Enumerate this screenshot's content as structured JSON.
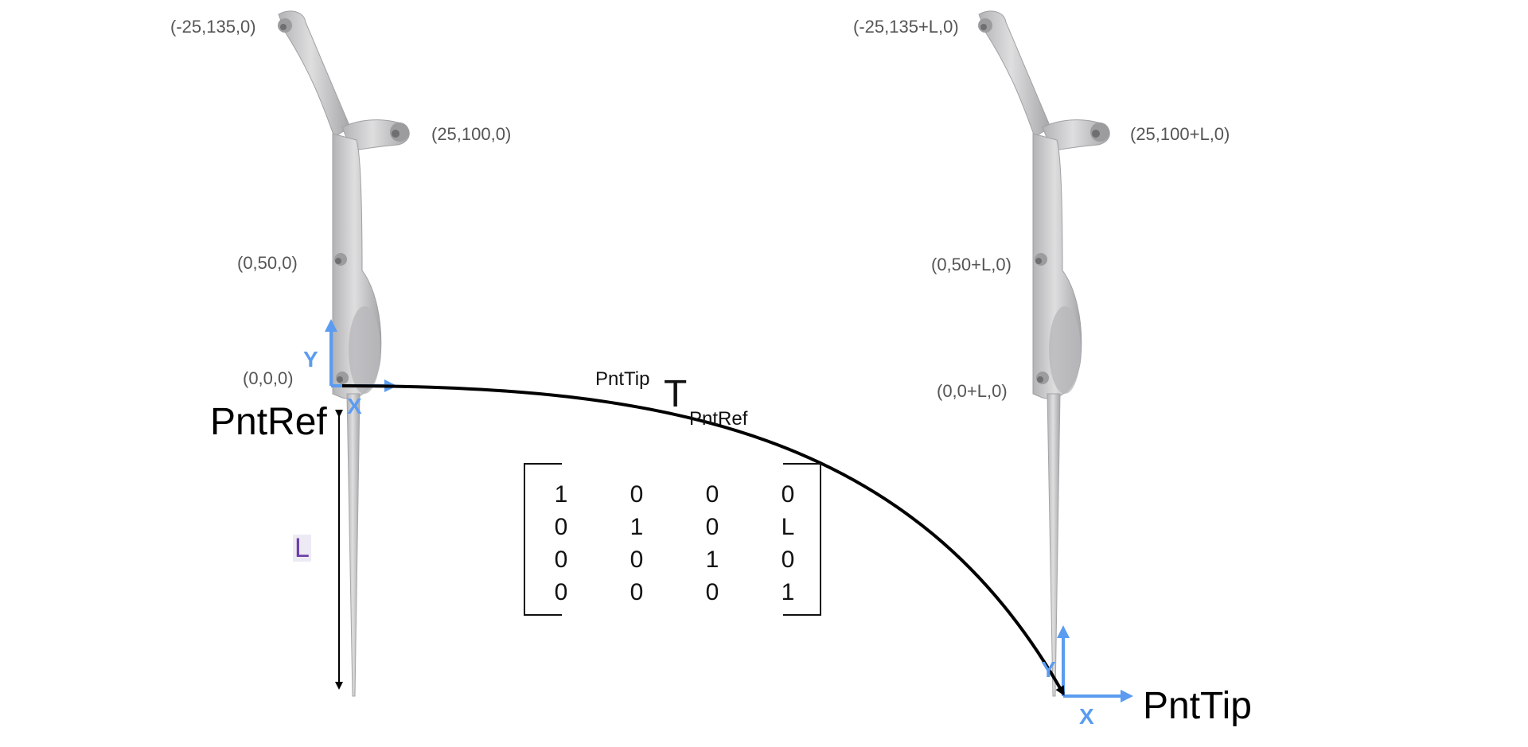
{
  "colors": {
    "axis": "#5b9cf0",
    "arrow": "#000000",
    "probe_fill": "#c9c9cb",
    "probe_shade": "#9d9da0",
    "L_label": "#6a3fa8"
  },
  "left_probe": {
    "markers": [
      {
        "label": "(-25,135,0)"
      },
      {
        "label": "(25,100,0)"
      },
      {
        "label": "(0,50,0)"
      },
      {
        "label": "(0,0,0)"
      }
    ],
    "frame_name": "PntRef",
    "axis_y": "Y",
    "axis_x": "X",
    "length_label": "L"
  },
  "right_probe": {
    "markers": [
      {
        "label": "(-25,135+L,0)"
      },
      {
        "label": "(25,100+L,0)"
      },
      {
        "label": "(0,50+L,0)"
      },
      {
        "label": "(0,0+L,0)"
      }
    ],
    "frame_name": "PntTip",
    "axis_y": "Y",
    "axis_x": "X"
  },
  "transform": {
    "superscript": "PntTip",
    "symbol": "T",
    "subscript": "PntRef",
    "matrix": [
      [
        "1",
        "0",
        "0",
        "0"
      ],
      [
        "0",
        "1",
        "0",
        "L"
      ],
      [
        "0",
        "0",
        "1",
        "0"
      ],
      [
        "0",
        "0",
        "0",
        "1"
      ]
    ]
  }
}
